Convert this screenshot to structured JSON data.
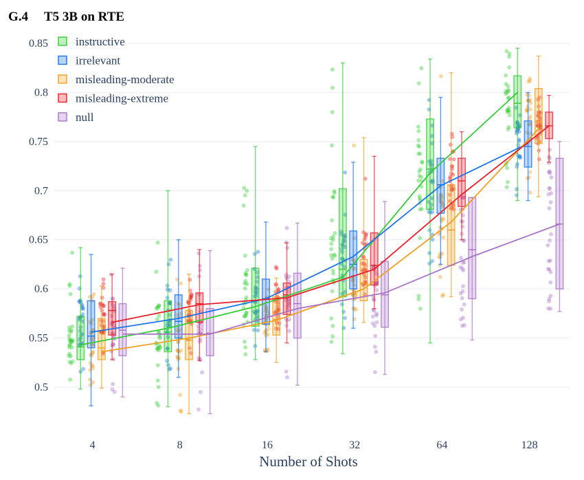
{
  "chart_data": {
    "type": "box",
    "title_prefix": "G.4",
    "title": "T5 3B on RTE",
    "xlabel": "Number of Shots",
    "ylabel": "",
    "categories": [
      "4",
      "8",
      "16",
      "32",
      "64",
      "128"
    ],
    "ylim": [
      0.47,
      0.86
    ],
    "yticks": [
      0.5,
      0.55,
      0.6,
      0.65,
      0.7,
      0.75,
      0.8,
      0.85
    ],
    "ytick_labels": [
      "0.5",
      "0.55",
      "0.6",
      "0.65",
      "0.7",
      "0.75",
      "0.8",
      "0.85"
    ],
    "grid": "horizontal",
    "legend_position": "top-left",
    "series": [
      {
        "name": "instructive",
        "color": "#33cc33",
        "means": [
          0.543,
          0.56,
          0.582,
          0.612,
          0.718,
          0.8
        ],
        "boxes": [
          {
            "min": 0.498,
            "q1": 0.528,
            "median": 0.541,
            "q3": 0.572,
            "max": 0.642
          },
          {
            "min": 0.48,
            "q1": 0.536,
            "median": 0.556,
            "q3": 0.588,
            "max": 0.7
          },
          {
            "min": 0.528,
            "q1": 0.562,
            "median": 0.588,
            "q3": 0.621,
            "max": 0.745
          },
          {
            "min": 0.534,
            "q1": 0.592,
            "median": 0.62,
            "q3": 0.702,
            "max": 0.83
          },
          {
            "min": 0.545,
            "q1": 0.681,
            "median": 0.722,
            "q3": 0.773,
            "max": 0.834
          },
          {
            "min": 0.69,
            "q1": 0.764,
            "median": 0.789,
            "q3": 0.817,
            "max": 0.845
          }
        ]
      },
      {
        "name": "irrelevant",
        "color": "#1a73e8",
        "means": [
          0.556,
          0.57,
          0.59,
          0.633,
          0.705,
          0.748
        ],
        "boxes": [
          {
            "min": 0.481,
            "q1": 0.54,
            "median": 0.552,
            "q3": 0.588,
            "max": 0.635
          },
          {
            "min": 0.51,
            "q1": 0.55,
            "median": 0.567,
            "q3": 0.594,
            "max": 0.65
          },
          {
            "min": 0.536,
            "q1": 0.564,
            "median": 0.59,
            "q3": 0.61,
            "max": 0.668
          },
          {
            "min": 0.56,
            "q1": 0.6,
            "median": 0.625,
            "q3": 0.659,
            "max": 0.729
          },
          {
            "min": 0.625,
            "q1": 0.677,
            "median": 0.706,
            "q3": 0.733,
            "max": 0.795
          },
          {
            "min": 0.69,
            "q1": 0.724,
            "median": 0.745,
            "q3": 0.771,
            "max": 0.8
          }
        ]
      },
      {
        "name": "misleading-moderate",
        "color": "#f0a020",
        "means": [
          0.536,
          0.55,
          0.568,
          0.6,
          0.668,
          0.763
        ],
        "boxes": [
          {
            "min": 0.499,
            "q1": 0.528,
            "median": 0.54,
            "q3": 0.57,
            "max": 0.603
          },
          {
            "min": 0.473,
            "q1": 0.528,
            "median": 0.548,
            "q3": 0.578,
            "max": 0.615
          },
          {
            "min": 0.525,
            "q1": 0.553,
            "median": 0.569,
            "q3": 0.592,
            "max": 0.611
          },
          {
            "min": 0.566,
            "q1": 0.588,
            "median": 0.606,
            "q3": 0.63,
            "max": 0.754
          },
          {
            "min": 0.592,
            "q1": 0.624,
            "median": 0.66,
            "q3": 0.706,
            "max": 0.82
          },
          {
            "min": 0.694,
            "q1": 0.748,
            "median": 0.77,
            "q3": 0.804,
            "max": 0.837
          }
        ]
      },
      {
        "name": "misleading-extreme",
        "color": "#e8202a",
        "means": [
          0.566,
          0.584,
          0.591,
          0.62,
          0.696,
          0.766
        ],
        "boxes": [
          {
            "min": 0.528,
            "q1": 0.553,
            "median": 0.578,
            "q3": 0.587,
            "max": 0.615
          },
          {
            "min": 0.527,
            "q1": 0.566,
            "median": 0.585,
            "q3": 0.596,
            "max": 0.64
          },
          {
            "min": 0.545,
            "q1": 0.574,
            "median": 0.594,
            "q3": 0.606,
            "max": 0.647
          },
          {
            "min": 0.58,
            "q1": 0.604,
            "median": 0.624,
            "q3": 0.657,
            "max": 0.735
          },
          {
            "min": 0.65,
            "q1": 0.684,
            "median": 0.71,
            "q3": 0.733,
            "max": 0.76
          },
          {
            "min": 0.729,
            "q1": 0.753,
            "median": 0.766,
            "q3": 0.78,
            "max": 0.797
          }
        ]
      },
      {
        "name": "null",
        "color": "#a972c8",
        "means": [
          0.554,
          0.554,
          0.58,
          0.596,
          0.633,
          0.666
        ],
        "boxes": [
          {
            "min": 0.49,
            "q1": 0.532,
            "median": 0.558,
            "q3": 0.585,
            "max": 0.621
          },
          {
            "min": 0.473,
            "q1": 0.532,
            "median": 0.555,
            "q3": 0.58,
            "max": 0.639
          },
          {
            "min": 0.502,
            "q1": 0.55,
            "median": 0.585,
            "q3": 0.616,
            "max": 0.667
          },
          {
            "min": 0.513,
            "q1": 0.561,
            "median": 0.594,
            "q3": 0.628,
            "max": 0.689
          },
          {
            "min": 0.548,
            "q1": 0.59,
            "median": 0.64,
            "q3": 0.693,
            "max": 0.693
          },
          {
            "min": 0.577,
            "q1": 0.6,
            "median": 0.666,
            "q3": 0.733,
            "max": 0.75
          }
        ]
      }
    ]
  }
}
